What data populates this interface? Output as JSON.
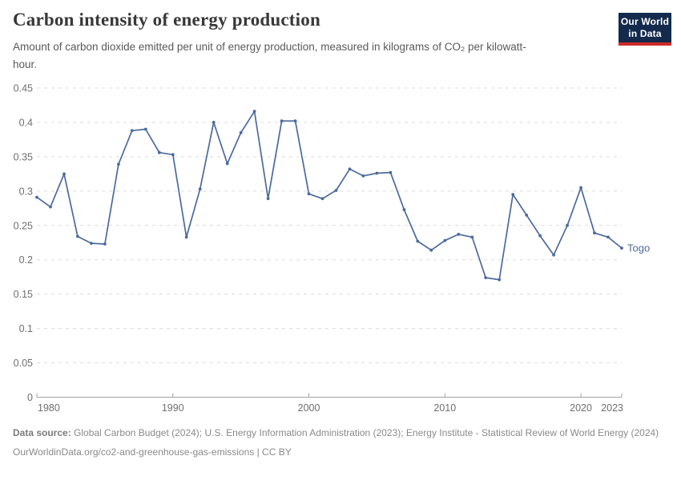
{
  "header": {
    "title": "Carbon intensity of energy production",
    "subtitle": "Amount of carbon dioxide emitted per unit of energy production, measured in kilograms of CO₂ per kilowatt-hour.",
    "logo": {
      "line1": "Our World",
      "line2": "in Data"
    }
  },
  "chart_data": {
    "type": "line",
    "title": "Carbon intensity of energy production",
    "xlabel": "",
    "ylabel": "",
    "xlim": [
      1980,
      2023
    ],
    "ylim": [
      0,
      0.45
    ],
    "grid": "horizontal-dashed",
    "legend_position": "end-of-line-label",
    "x": [
      1980,
      1981,
      1982,
      1983,
      1984,
      1985,
      1986,
      1987,
      1988,
      1989,
      1990,
      1991,
      1992,
      1993,
      1994,
      1995,
      1996,
      1997,
      1998,
      1999,
      2000,
      2001,
      2002,
      2003,
      2004,
      2005,
      2006,
      2007,
      2008,
      2009,
      2010,
      2011,
      2012,
      2013,
      2014,
      2015,
      2016,
      2017,
      2018,
      2019,
      2020,
      2021,
      2022,
      2023
    ],
    "series": [
      {
        "name": "Togo",
        "color": "#4C6A9C",
        "values": [
          0.291,
          0.277,
          0.325,
          0.234,
          0.224,
          0.223,
          0.339,
          0.388,
          0.39,
          0.356,
          0.353,
          0.233,
          0.303,
          0.4,
          0.34,
          0.385,
          0.416,
          0.289,
          0.402,
          0.402,
          0.296,
          0.289,
          0.301,
          0.332,
          0.322,
          0.326,
          0.327,
          0.273,
          0.227,
          0.214,
          0.228,
          0.237,
          0.233,
          0.174,
          0.171,
          0.295,
          0.265,
          0.235,
          0.207,
          0.25,
          0.305,
          0.239,
          0.233,
          0.217
        ]
      }
    ],
    "ytick_values": [
      0,
      0.05,
      0.1,
      0.15,
      0.2,
      0.25,
      0.3,
      0.35,
      0.4,
      0.45
    ],
    "ytick_labels": [
      "0",
      "0.05",
      "0.1",
      "0.15",
      "0.2",
      "0.25",
      "0.3",
      "0.35",
      "0.4",
      "0.45"
    ],
    "xtick_values": [
      1980,
      1990,
      2000,
      2010,
      2020,
      2023
    ],
    "xtick_labels": [
      "1980",
      "1990",
      "2000",
      "2010",
      "2020",
      "2023"
    ],
    "end_label": "Togo"
  },
  "footer": {
    "source_label": "Data source:",
    "source_text": " Global Carbon Budget (2024); U.S. Energy Information Administration (2023); Energy Institute - Statistical Review of World Energy (2024)",
    "license_line": "OurWorldinData.org/co2-and-greenhouse-gas-emissions | CC BY"
  },
  "colors": {
    "line": "#4C6A9C",
    "grid": "#dcdcdc",
    "axis": "#a3a3a3",
    "tick_text": "#6e6e6e",
    "logo_navy": "#132A4D",
    "logo_red": "#CC2B26"
  }
}
